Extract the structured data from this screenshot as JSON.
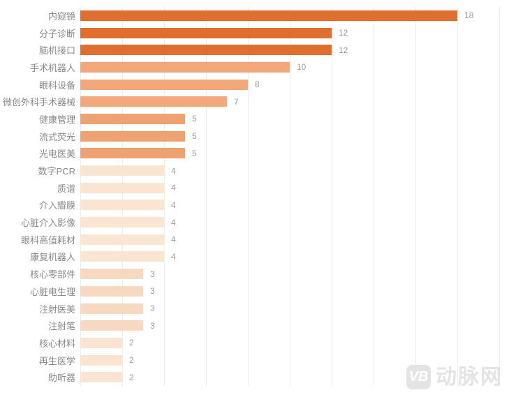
{
  "chart_data": {
    "type": "bar",
    "orientation": "horizontal",
    "title": "",
    "xlabel": "",
    "ylabel": "",
    "xlim": [
      0,
      20
    ],
    "gridline_step": 2,
    "grid": "vertical-lines-only",
    "legend": "none",
    "categories": [
      "内窥镜",
      "分子诊断",
      "脑机接口",
      "手术机器人",
      "眼科设备",
      "微创外科手术器械",
      "健康管理",
      "流式荧光",
      "光电医美",
      "数字PCR",
      "质谱",
      "介入瓣膜",
      "心脏介入影像",
      "眼科高值耗材",
      "康复机器人",
      "核心零部件",
      "心脏电生理",
      "注射医美",
      "注射笔",
      "核心材料",
      "再生医学",
      "助听器"
    ],
    "values": [
      18,
      12,
      12,
      10,
      8,
      7,
      5,
      5,
      5,
      4,
      4,
      4,
      4,
      4,
      4,
      3,
      3,
      3,
      3,
      2,
      2,
      2
    ],
    "bar_colors": [
      "#e06e2e",
      "#e06e2e",
      "#e06e2e",
      "#f2a87a",
      "#f2a87a",
      "#f2a87a",
      "#efa271",
      "#efa271",
      "#efa271",
      "#fae5d3",
      "#fae5d3",
      "#fae5d3",
      "#fae5d3",
      "#fae5d3",
      "#fae5d3",
      "#f7d8c0",
      "#f7d8c0",
      "#f7d8c0",
      "#f7d8c0",
      "#fae3d0",
      "#fae3d0",
      "#fae3d0"
    ],
    "value_labels_shown": true
  },
  "style": {
    "gridline_color": "#ededed",
    "category_label_color": "#898989",
    "value_label_color": "#9c9c9c",
    "background": "#ffffff"
  },
  "watermark": {
    "logo": "VB",
    "text": "动脉网"
  }
}
